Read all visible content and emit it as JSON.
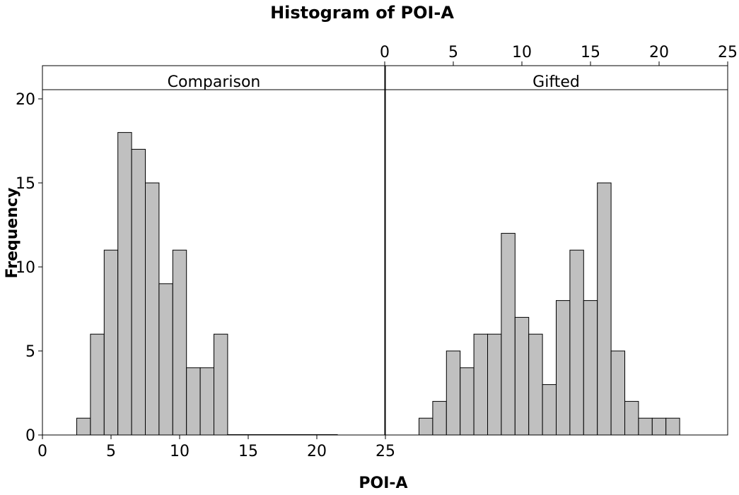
{
  "chart_data": {
    "type": "bar",
    "title": "Histogram of POI-A",
    "xlabel": "POI-A",
    "ylabel": "Frequency",
    "bin_width": 1,
    "ylim": [
      0,
      20
    ],
    "xlim": [
      0,
      25
    ],
    "y_ticks": [
      0,
      5,
      10,
      15,
      20
    ],
    "x_ticks": [
      0,
      5,
      10,
      15,
      20,
      25
    ],
    "bar_fill": "#c0c0c0",
    "bar_stroke": "#000000",
    "panels": [
      {
        "name": "Comparison",
        "bins": [
          {
            "center": 3,
            "count": 1
          },
          {
            "center": 4,
            "count": 6
          },
          {
            "center": 5,
            "count": 11
          },
          {
            "center": 6,
            "count": 18
          },
          {
            "center": 7,
            "count": 17
          },
          {
            "center": 8,
            "count": 15
          },
          {
            "center": 9,
            "count": 9
          },
          {
            "center": 10,
            "count": 11
          },
          {
            "center": 11,
            "count": 4
          },
          {
            "center": 12,
            "count": 4
          },
          {
            "center": 13,
            "count": 6
          },
          {
            "center": 14,
            "count": 0
          },
          {
            "center": 15,
            "count": 0
          },
          {
            "center": 16,
            "count": 0
          },
          {
            "center": 17,
            "count": 0
          },
          {
            "center": 18,
            "count": 0
          },
          {
            "center": 19,
            "count": 0
          },
          {
            "center": 20,
            "count": 0
          },
          {
            "center": 21,
            "count": 0
          }
        ]
      },
      {
        "name": "Gifted",
        "bins": [
          {
            "center": 3,
            "count": 1
          },
          {
            "center": 4,
            "count": 2
          },
          {
            "center": 5,
            "count": 5
          },
          {
            "center": 6,
            "count": 4
          },
          {
            "center": 7,
            "count": 6
          },
          {
            "center": 8,
            "count": 6
          },
          {
            "center": 9,
            "count": 12
          },
          {
            "center": 10,
            "count": 7
          },
          {
            "center": 11,
            "count": 6
          },
          {
            "center": 12,
            "count": 3
          },
          {
            "center": 13,
            "count": 8
          },
          {
            "center": 14,
            "count": 11
          },
          {
            "center": 15,
            "count": 8
          },
          {
            "center": 16,
            "count": 15
          },
          {
            "center": 17,
            "count": 5
          },
          {
            "center": 18,
            "count": 2
          },
          {
            "center": 19,
            "count": 1
          },
          {
            "center": 20,
            "count": 1
          },
          {
            "center": 21,
            "count": 1
          }
        ]
      }
    ]
  }
}
